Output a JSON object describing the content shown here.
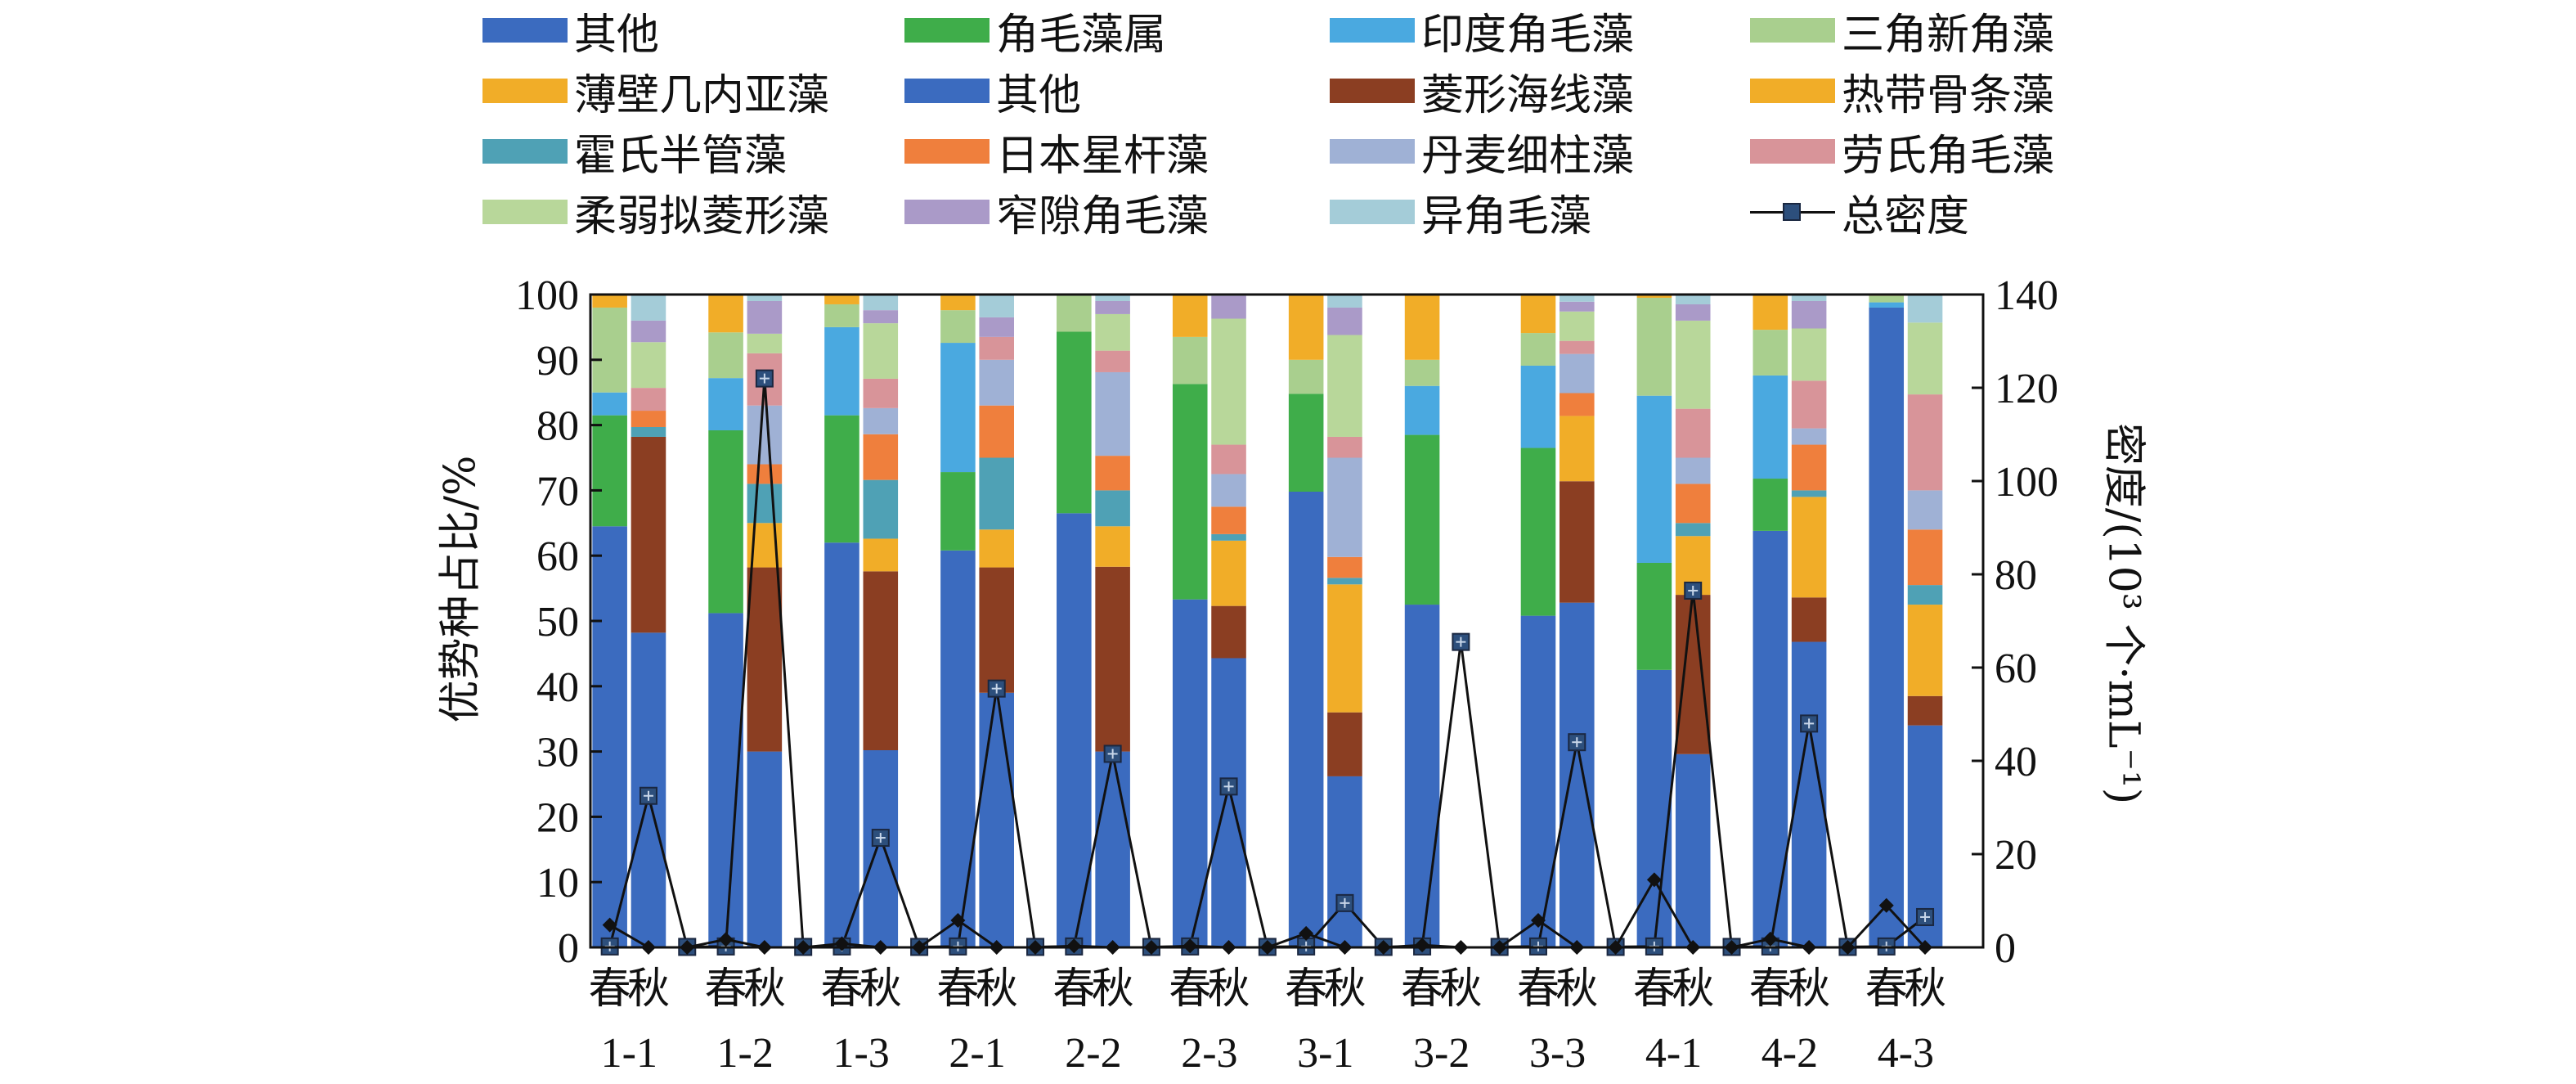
{
  "chart_data": {
    "type": "bar",
    "subtype": "stacked-bar-with-line",
    "ylabel": "优势种占比/%",
    "y2label": "密度/(10³ 个·mL⁻¹)",
    "ylim": [
      0,
      100
    ],
    "y2lim": [
      0,
      140
    ],
    "yticks": [
      "0",
      "10",
      "20",
      "30",
      "40",
      "50",
      "60",
      "70",
      "80",
      "90",
      "100"
    ],
    "y2ticks": [
      "0",
      "20",
      "40",
      "60",
      "80",
      "100",
      "120",
      "140"
    ],
    "stations": [
      "1-1",
      "1-2",
      "1-3",
      "2-1",
      "2-2",
      "2-3",
      "3-1",
      "3-2",
      "3-3",
      "4-1",
      "4-2",
      "4-3"
    ],
    "seasons": [
      "春",
      "秋"
    ],
    "legend": [
      {
        "name": "其他",
        "color": "#3b6bbf"
      },
      {
        "name": "角毛藻属",
        "color": "#3fad4a"
      },
      {
        "name": "印度角毛藻",
        "color": "#4aa9e0"
      },
      {
        "name": "三角新角藻",
        "color": "#a9cf8e"
      },
      {
        "name": "薄壁几内亚藻",
        "color": "#f1ad28"
      },
      {
        "name": "其他",
        "color": "#3b6bbf"
      },
      {
        "name": "菱形海线藻",
        "color": "#8b3e22"
      },
      {
        "name": "热带骨条藻",
        "color": "#f1ad28"
      },
      {
        "name": "霍氏半管藻",
        "color": "#4fa1b5"
      },
      {
        "name": "日本星杆藻",
        "color": "#ef7f3d"
      },
      {
        "name": "丹麦细柱藻",
        "color": "#9fb1d5"
      },
      {
        "name": "劳氏角毛藻",
        "color": "#d89499"
      },
      {
        "name": "柔弱拟菱形藻",
        "color": "#b8d79a"
      },
      {
        "name": "窄隙角毛藻",
        "color": "#aa9ac8"
      },
      {
        "name": "异角毛藻",
        "color": "#a4ccd8"
      },
      {
        "name": "总密度",
        "color": "#111111"
      }
    ],
    "spring_segment_colors": [
      "#3b6bbf",
      "#3fad4a",
      "#4aa9e0",
      "#a9cf8e",
      "#f1ad28"
    ],
    "autumn_segment_colors": [
      "#3b6bbf",
      "#8b3e22",
      "#f1ad28",
      "#4fa1b5",
      "#ef7f3d",
      "#9fb1d5",
      "#d89499",
      "#b8d79a",
      "#aa9ac8",
      "#a4ccd8"
    ],
    "spring_bars": [
      [
        64.5,
        17.0,
        3.5,
        13.0,
        2.0
      ],
      [
        51.2,
        28.0,
        8.0,
        7.0,
        5.8
      ],
      [
        62.0,
        19.5,
        13.5,
        3.5,
        1.5
      ],
      [
        60.8,
        12.0,
        19.8,
        5.0,
        2.4
      ],
      [
        66.5,
        27.8,
        0.0,
        5.7,
        0.0
      ],
      [
        53.3,
        33.0,
        0.0,
        7.2,
        6.5
      ],
      [
        69.8,
        15.0,
        0.0,
        5.2,
        10.0
      ],
      [
        52.5,
        26.0,
        7.5,
        4.0,
        10.0
      ],
      [
        50.8,
        25.7,
        12.6,
        5.0,
        5.9
      ],
      [
        42.5,
        16.4,
        25.6,
        15.0,
        0.5
      ],
      [
        63.8,
        8.0,
        15.8,
        7.0,
        5.4
      ],
      [
        98.0,
        0.0,
        0.8,
        1.0,
        0.2
      ]
    ],
    "autumn_bars": [
      [
        48.2,
        30.0,
        0.0,
        1.5,
        2.5,
        0.0,
        3.5,
        7.0,
        3.3,
        4.0
      ],
      [
        30.0,
        28.2,
        6.8,
        6.0,
        3.0,
        9.0,
        8.0,
        3.0,
        5.0,
        1.0
      ],
      [
        30.2,
        27.4,
        5.0,
        9.0,
        7.0,
        4.0,
        4.5,
        8.5,
        2.0,
        2.4
      ],
      [
        39.0,
        19.2,
        5.8,
        11.0,
        8.0,
        7.0,
        3.5,
        0.0,
        3.0,
        3.5
      ],
      [
        30.0,
        28.3,
        6.2,
        5.5,
        5.3,
        12.8,
        3.3,
        5.6,
        2.0,
        1.0
      ],
      [
        44.3,
        8.0,
        10.0,
        1.0,
        4.2,
        5.0,
        4.5,
        19.3,
        3.5,
        0.2
      ],
      [
        26.2,
        9.8,
        19.6,
        1.0,
        3.2,
        15.2,
        3.2,
        15.6,
        4.2,
        2.0
      ],
      [
        0,
        0,
        0,
        0,
        0,
        0,
        0,
        0,
        0,
        0
      ],
      [
        52.8,
        18.6,
        10.0,
        0.0,
        3.5,
        6.0,
        2.0,
        4.5,
        1.5,
        1.1
      ],
      [
        29.6,
        24.4,
        9.0,
        2.0,
        6.0,
        4.0,
        7.5,
        13.5,
        2.5,
        1.5
      ],
      [
        46.8,
        6.8,
        15.4,
        1.0,
        7.0,
        2.5,
        7.3,
        8.0,
        4.2,
        1.0
      ],
      [
        34.0,
        4.5,
        14.0,
        3.0,
        8.5,
        6.0,
        14.7,
        11.0,
        0.0,
        4.3
      ]
    ],
    "density_series": [
      {
        "name": "总密度",
        "values": [
          0.2,
          32.5,
          0.1,
          0.2,
          122.0,
          0.1,
          0.2,
          23.5,
          0.1,
          0.2,
          55.5,
          0.1,
          0.2,
          41.5,
          0.1,
          0.2,
          34.5,
          0.1,
          0.2,
          9.5,
          0.1,
          0.2,
          65.5,
          0.1,
          0.2,
          44.0,
          0.1,
          0.2,
          76.5,
          0.1,
          0.2,
          48.0,
          0.1,
          0.2,
          6.5
        ]
      },
      {
        "name": "",
        "values": [
          4.8,
          0.0,
          0.0,
          1.7,
          0.0,
          0.0,
          0.8,
          0.0,
          0.0,
          5.8,
          0.0,
          0.0,
          0.3,
          0.0,
          0.0,
          0.3,
          0.0,
          0.0,
          3.0,
          0.0,
          0.0,
          0.5,
          0.0,
          0.0,
          5.8,
          0.0,
          0.0,
          14.5,
          0.0,
          0.0,
          1.8,
          0.0,
          0.0,
          9.0,
          0.0
        ]
      }
    ]
  }
}
